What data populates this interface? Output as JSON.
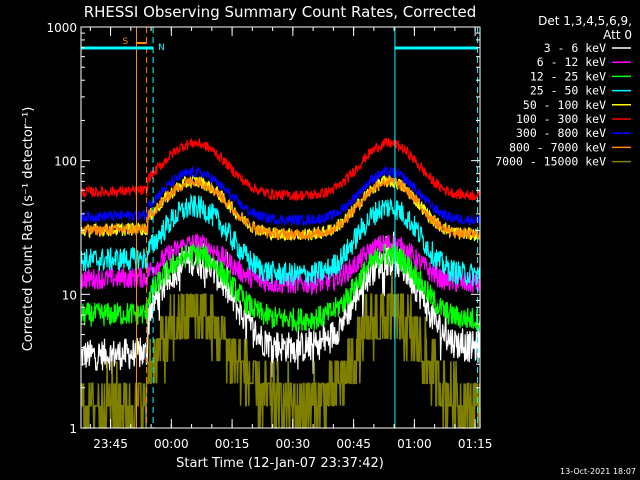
{
  "chart_data": {
    "type": "line",
    "title": "RHESSI Observing Summary Count Rates, Corrected",
    "xlabel": "Start Time (12-Jan-07 23:37:42)",
    "ylabel": "Corrected Count Rate (s⁻¹ detector⁻¹)",
    "yscale": "log",
    "ylim": [
      1,
      1000
    ],
    "xlim_minutes": [
      0,
      98.5
    ],
    "x_ticks": [
      {
        "label": "23:45",
        "minutes": 7.3
      },
      {
        "label": "00:00",
        "minutes": 22.3
      },
      {
        "label": "00:15",
        "minutes": 37.3
      },
      {
        "label": "00:30",
        "minutes": 52.3
      },
      {
        "label": "00:45",
        "minutes": 67.3
      },
      {
        "label": "01:00",
        "minutes": 82.3
      },
      {
        "label": "01:15",
        "minutes": 97.3
      }
    ],
    "y_ticks": [
      "1",
      "10",
      "100",
      "1000"
    ],
    "legend_header": [
      "Det 1,3,4,5,6,9,",
      "Att 0"
    ],
    "legend_position": "right",
    "series": [
      {
        "name": "3 - 6 keV",
        "color": "#ffffff",
        "pre": 3.5,
        "peak": 18,
        "trough": 4,
        "shape": "spiky",
        "noise": 0.12
      },
      {
        "name": "6 - 12 keV",
        "color": "#ff00ff",
        "pre": 13,
        "peak": 24,
        "trough": 12,
        "shape": "smooth",
        "noise": 0.08
      },
      {
        "name": "12 - 25 keV",
        "color": "#00ff00",
        "pre": 7,
        "peak": 20,
        "trough": 6.5,
        "shape": "smooth",
        "noise": 0.09
      },
      {
        "name": "25 - 50 keV",
        "color": "#00ffff",
        "pre": 18,
        "peak": 45,
        "trough": 14,
        "shape": "smooth",
        "noise": 0.09
      },
      {
        "name": "50 - 100 keV",
        "color": "#ffff00",
        "pre": 30,
        "peak": 70,
        "trough": 28,
        "shape": "smooth",
        "noise": 0.05
      },
      {
        "name": "100 - 300 keV",
        "color": "#ff0000",
        "pre": 58,
        "peak": 135,
        "trough": 55,
        "shape": "smooth",
        "noise": 0.04
      },
      {
        "name": "300 - 800 keV",
        "color": "#0000ff",
        "pre": 38,
        "peak": 82,
        "trough": 36,
        "shape": "smooth",
        "noise": 0.04
      },
      {
        "name": "800 - 7000 keV",
        "color": "#ff8800",
        "pre": 30,
        "peak": 70,
        "trough": 28,
        "shape": "smooth",
        "noise": 0.04
      },
      {
        "name": "7000 - 15000 keV",
        "color": "#808000",
        "pre": 1.5,
        "peak": 7,
        "trough": 1.5,
        "shape": "stepped",
        "noise": 0.0
      }
    ],
    "markers": [
      {
        "label": "S",
        "color": "#ff8800",
        "minutes": [
          13.7,
          16.2
        ]
      },
      {
        "label": "N",
        "color": "#00ffff",
        "minutes": [
          17.8,
          77.5,
          97.9
        ]
      }
    ]
  },
  "footer": {
    "timestamp": "13-Oct-2021 18:07"
  }
}
